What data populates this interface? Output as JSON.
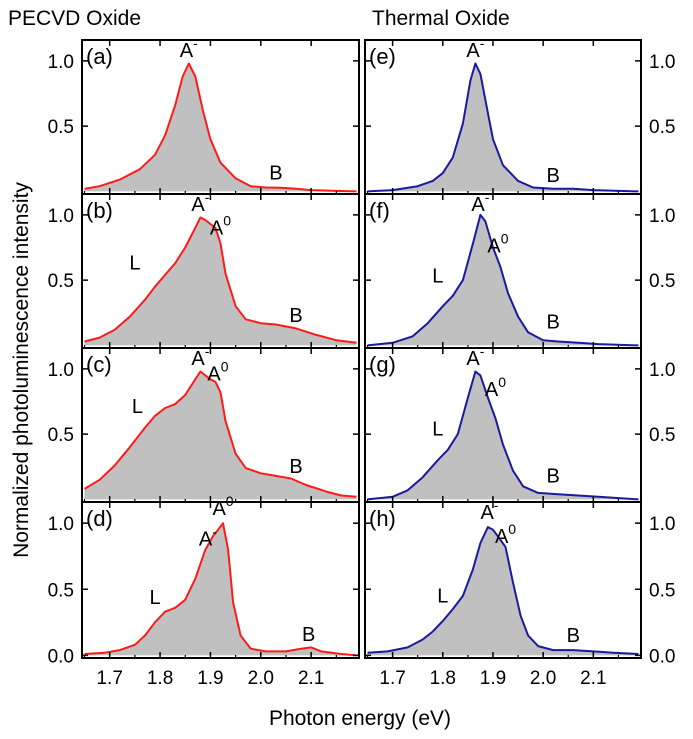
{
  "colors": {
    "left": "#ff1a1a",
    "right": "#1a1aa0",
    "fill": "#c0c0c0",
    "frame": "#000000"
  },
  "headers": {
    "left": "PECVD Oxide",
    "right": "Thermal Oxide"
  },
  "chart_data": {
    "type": "area",
    "title": "",
    "xlabel": "Photon energy (eV)",
    "ylabel": "Normalized photoluminescence intensity",
    "xlim": [
      1.645,
      2.195
    ],
    "ylim": [
      -0.02,
      1.16
    ],
    "xticks": [
      "1.7",
      "1.8",
      "1.9",
      "2.0",
      "2.1"
    ],
    "yticks": [
      "0.0",
      "0.5",
      "1.0"
    ],
    "columns": [
      "PECVD Oxide",
      "Thermal Oxide"
    ],
    "panels": [
      {
        "id": "(a)",
        "column": 0,
        "row": 0,
        "series": "PECVD Oxide",
        "peaks": [
          {
            "label": "A",
            "sup": "-",
            "x": 1.857,
            "y": 1.0
          },
          {
            "label": "B",
            "sup": "",
            "x": 2.03,
            "y": 0.06
          }
        ],
        "points": [
          [
            1.65,
            0.02
          ],
          [
            1.68,
            0.04
          ],
          [
            1.72,
            0.09
          ],
          [
            1.76,
            0.17
          ],
          [
            1.79,
            0.28
          ],
          [
            1.81,
            0.43
          ],
          [
            1.83,
            0.66
          ],
          [
            1.845,
            0.88
          ],
          [
            1.857,
            0.98
          ],
          [
            1.87,
            0.88
          ],
          [
            1.885,
            0.62
          ],
          [
            1.9,
            0.4
          ],
          [
            1.92,
            0.22
          ],
          [
            1.95,
            0.1
          ],
          [
            1.98,
            0.04
          ],
          [
            2.01,
            0.03
          ],
          [
            2.04,
            0.028
          ],
          [
            2.07,
            0.02
          ],
          [
            2.1,
            0.01
          ],
          [
            2.15,
            0.004
          ],
          [
            2.19,
            0.0
          ]
        ]
      },
      {
        "id": "(b)",
        "column": 0,
        "row": 1,
        "series": "PECVD Oxide",
        "peaks": [
          {
            "label": "A",
            "sup": "-",
            "x": 1.88,
            "y": 1.0
          },
          {
            "label": "A",
            "sup": "0",
            "x": 1.92,
            "y": 0.82
          },
          {
            "label": "L",
            "sup": "",
            "x": 1.75,
            "y": 0.55
          },
          {
            "label": "B",
            "sup": "",
            "x": 2.07,
            "y": 0.15
          }
        ],
        "points": [
          [
            1.65,
            0.03
          ],
          [
            1.68,
            0.06
          ],
          [
            1.71,
            0.12
          ],
          [
            1.74,
            0.22
          ],
          [
            1.77,
            0.35
          ],
          [
            1.79,
            0.45
          ],
          [
            1.81,
            0.54
          ],
          [
            1.83,
            0.63
          ],
          [
            1.85,
            0.75
          ],
          [
            1.87,
            0.9
          ],
          [
            1.88,
            0.98
          ],
          [
            1.89,
            0.96
          ],
          [
            1.9,
            0.93
          ],
          [
            1.91,
            0.9
          ],
          [
            1.92,
            0.78
          ],
          [
            1.93,
            0.55
          ],
          [
            1.95,
            0.3
          ],
          [
            1.97,
            0.2
          ],
          [
            2.0,
            0.17
          ],
          [
            2.03,
            0.16
          ],
          [
            2.07,
            0.13
          ],
          [
            2.11,
            0.08
          ],
          [
            2.15,
            0.04
          ],
          [
            2.19,
            0.02
          ]
        ]
      },
      {
        "id": "(c)",
        "column": 0,
        "row": 2,
        "series": "PECVD Oxide",
        "peaks": [
          {
            "label": "A",
            "sup": "-",
            "x": 1.88,
            "y": 1.0
          },
          {
            "label": "A",
            "sup": "0",
            "x": 1.915,
            "y": 0.88
          },
          {
            "label": "L",
            "sup": "",
            "x": 1.755,
            "y": 0.63
          },
          {
            "label": "B",
            "sup": "",
            "x": 2.07,
            "y": 0.17
          }
        ],
        "points": [
          [
            1.65,
            0.08
          ],
          [
            1.68,
            0.15
          ],
          [
            1.71,
            0.26
          ],
          [
            1.74,
            0.4
          ],
          [
            1.77,
            0.55
          ],
          [
            1.79,
            0.64
          ],
          [
            1.81,
            0.7
          ],
          [
            1.83,
            0.73
          ],
          [
            1.85,
            0.8
          ],
          [
            1.87,
            0.92
          ],
          [
            1.88,
            0.98
          ],
          [
            1.89,
            0.95
          ],
          [
            1.9,
            0.92
          ],
          [
            1.91,
            0.9
          ],
          [
            1.92,
            0.82
          ],
          [
            1.93,
            0.6
          ],
          [
            1.95,
            0.35
          ],
          [
            1.97,
            0.24
          ],
          [
            2.0,
            0.2
          ],
          [
            2.03,
            0.18
          ],
          [
            2.06,
            0.16
          ],
          [
            2.09,
            0.11
          ],
          [
            2.13,
            0.06
          ],
          [
            2.16,
            0.03
          ],
          [
            2.19,
            0.02
          ]
        ]
      },
      {
        "id": "(d)",
        "column": 0,
        "row": 3,
        "series": "PECVD Oxide",
        "peaks": [
          {
            "label": "A",
            "sup": "-",
            "x": 1.895,
            "y": 0.8
          },
          {
            "label": "A",
            "sup": "0",
            "x": 1.925,
            "y": 1.03
          },
          {
            "label": "L",
            "sup": "",
            "x": 1.79,
            "y": 0.36
          },
          {
            "label": "B",
            "sup": "",
            "x": 2.095,
            "y": 0.08
          }
        ],
        "points": [
          [
            1.65,
            0.01
          ],
          [
            1.69,
            0.02
          ],
          [
            1.72,
            0.04
          ],
          [
            1.75,
            0.08
          ],
          [
            1.77,
            0.15
          ],
          [
            1.79,
            0.25
          ],
          [
            1.81,
            0.33
          ],
          [
            1.83,
            0.36
          ],
          [
            1.85,
            0.42
          ],
          [
            1.87,
            0.58
          ],
          [
            1.89,
            0.8
          ],
          [
            1.905,
            0.9
          ],
          [
            1.915,
            0.95
          ],
          [
            1.925,
            1.0
          ],
          [
            1.935,
            0.8
          ],
          [
            1.945,
            0.4
          ],
          [
            1.96,
            0.15
          ],
          [
            1.98,
            0.05
          ],
          [
            2.01,
            0.03
          ],
          [
            2.05,
            0.03
          ],
          [
            2.08,
            0.05
          ],
          [
            2.1,
            0.06
          ],
          [
            2.12,
            0.03
          ],
          [
            2.16,
            0.01
          ],
          [
            2.19,
            0.0
          ]
        ]
      },
      {
        "id": "(e)",
        "column": 1,
        "row": 0,
        "series": "Thermal Oxide",
        "peaks": [
          {
            "label": "A",
            "sup": "-",
            "x": 1.865,
            "y": 1.0
          },
          {
            "label": "B",
            "sup": "",
            "x": 2.02,
            "y": 0.04
          }
        ],
        "points": [
          [
            1.65,
            0.0
          ],
          [
            1.7,
            0.01
          ],
          [
            1.75,
            0.04
          ],
          [
            1.78,
            0.08
          ],
          [
            1.8,
            0.14
          ],
          [
            1.82,
            0.26
          ],
          [
            1.84,
            0.52
          ],
          [
            1.855,
            0.85
          ],
          [
            1.865,
            0.98
          ],
          [
            1.875,
            0.9
          ],
          [
            1.89,
            0.6
          ],
          [
            1.9,
            0.4
          ],
          [
            1.92,
            0.2
          ],
          [
            1.95,
            0.08
          ],
          [
            1.98,
            0.03
          ],
          [
            2.02,
            0.02
          ],
          [
            2.06,
            0.02
          ],
          [
            2.1,
            0.01
          ],
          [
            2.19,
            0.0
          ]
        ]
      },
      {
        "id": "(f)",
        "column": 1,
        "row": 1,
        "series": "Thermal Oxide",
        "peaks": [
          {
            "label": "A",
            "sup": "-",
            "x": 1.875,
            "y": 1.0
          },
          {
            "label": "A",
            "sup": "0",
            "x": 1.91,
            "y": 0.68
          },
          {
            "label": "L",
            "sup": "",
            "x": 1.79,
            "y": 0.45
          },
          {
            "label": "B",
            "sup": "",
            "x": 2.02,
            "y": 0.1
          }
        ],
        "points": [
          [
            1.65,
            0.0
          ],
          [
            1.7,
            0.02
          ],
          [
            1.74,
            0.07
          ],
          [
            1.77,
            0.17
          ],
          [
            1.8,
            0.3
          ],
          [
            1.82,
            0.38
          ],
          [
            1.84,
            0.5
          ],
          [
            1.86,
            0.78
          ],
          [
            1.875,
            1.0
          ],
          [
            1.885,
            0.95
          ],
          [
            1.9,
            0.75
          ],
          [
            1.915,
            0.6
          ],
          [
            1.93,
            0.4
          ],
          [
            1.95,
            0.22
          ],
          [
            1.97,
            0.1
          ],
          [
            2.0,
            0.04
          ],
          [
            2.03,
            0.03
          ],
          [
            2.07,
            0.02
          ],
          [
            2.11,
            0.01
          ],
          [
            2.19,
            0.0
          ]
        ]
      },
      {
        "id": "(g)",
        "column": 1,
        "row": 2,
        "series": "Thermal Oxide",
        "peaks": [
          {
            "label": "A",
            "sup": "-",
            "x": 1.865,
            "y": 1.0
          },
          {
            "label": "A",
            "sup": "0",
            "x": 1.905,
            "y": 0.76
          },
          {
            "label": "L",
            "sup": "",
            "x": 1.79,
            "y": 0.46
          },
          {
            "label": "B",
            "sup": "",
            "x": 2.02,
            "y": 0.1
          }
        ],
        "points": [
          [
            1.65,
            0.0
          ],
          [
            1.7,
            0.02
          ],
          [
            1.73,
            0.07
          ],
          [
            1.76,
            0.17
          ],
          [
            1.79,
            0.3
          ],
          [
            1.81,
            0.38
          ],
          [
            1.83,
            0.5
          ],
          [
            1.85,
            0.78
          ],
          [
            1.865,
            0.98
          ],
          [
            1.875,
            0.95
          ],
          [
            1.89,
            0.78
          ],
          [
            1.905,
            0.62
          ],
          [
            1.92,
            0.42
          ],
          [
            1.94,
            0.22
          ],
          [
            1.96,
            0.1
          ],
          [
            1.99,
            0.05
          ],
          [
            2.03,
            0.04
          ],
          [
            2.07,
            0.03
          ],
          [
            2.11,
            0.02
          ],
          [
            2.19,
            0.0
          ]
        ]
      },
      {
        "id": "(h)",
        "column": 1,
        "row": 3,
        "series": "Thermal Oxide",
        "peaks": [
          {
            "label": "A",
            "sup": "-",
            "x": 1.893,
            "y": 1.0
          },
          {
            "label": "A",
            "sup": "0",
            "x": 1.925,
            "y": 0.82
          },
          {
            "label": "L",
            "sup": "",
            "x": 1.8,
            "y": 0.37
          },
          {
            "label": "B",
            "sup": "",
            "x": 2.06,
            "y": 0.07
          }
        ],
        "points": [
          [
            1.65,
            0.02
          ],
          [
            1.69,
            0.03
          ],
          [
            1.73,
            0.06
          ],
          [
            1.76,
            0.12
          ],
          [
            1.78,
            0.18
          ],
          [
            1.8,
            0.26
          ],
          [
            1.82,
            0.35
          ],
          [
            1.84,
            0.45
          ],
          [
            1.86,
            0.65
          ],
          [
            1.875,
            0.85
          ],
          [
            1.89,
            0.97
          ],
          [
            1.9,
            0.95
          ],
          [
            1.91,
            0.9
          ],
          [
            1.925,
            0.82
          ],
          [
            1.94,
            0.55
          ],
          [
            1.955,
            0.3
          ],
          [
            1.97,
            0.15
          ],
          [
            1.99,
            0.07
          ],
          [
            2.02,
            0.04
          ],
          [
            2.06,
            0.04
          ],
          [
            2.1,
            0.03
          ],
          [
            2.14,
            0.02
          ],
          [
            2.19,
            0.01
          ]
        ]
      }
    ]
  }
}
